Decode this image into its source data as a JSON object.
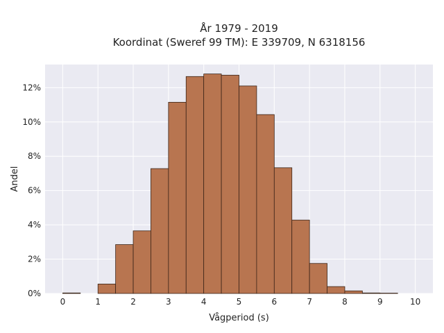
{
  "chart_data": {
    "type": "bar",
    "title_lines": [
      "År 1979 - 2019",
      "Koordinat (Sweref 99 TM): E 339709, N 6318156"
    ],
    "xlabel": "Vågperiod (s)",
    "ylabel": "Andel",
    "xlim": [
      -0.5,
      10.5
    ],
    "ylim": [
      0,
      0.1335
    ],
    "x_ticks": [
      0,
      1,
      2,
      3,
      4,
      5,
      6,
      7,
      8,
      9,
      10
    ],
    "y_ticks": [
      0,
      0.02,
      0.04,
      0.06,
      0.08,
      0.1,
      0.12
    ],
    "y_tick_labels": [
      "0%",
      "2%",
      "4%",
      "6%",
      "8%",
      "10%",
      "12%"
    ],
    "bin_width": 0.5,
    "bins": [
      {
        "start": 0.0,
        "value": 0.0003
      },
      {
        "start": 0.5,
        "value": 0.0
      },
      {
        "start": 1.0,
        "value": 0.0055
      },
      {
        "start": 1.5,
        "value": 0.0285
      },
      {
        "start": 2.0,
        "value": 0.0365
      },
      {
        "start": 2.5,
        "value": 0.0728
      },
      {
        "start": 3.0,
        "value": 0.1115
      },
      {
        "start": 3.5,
        "value": 0.1265
      },
      {
        "start": 4.0,
        "value": 0.128
      },
      {
        "start": 4.5,
        "value": 0.1273
      },
      {
        "start": 5.0,
        "value": 0.121
      },
      {
        "start": 5.5,
        "value": 0.1043
      },
      {
        "start": 6.0,
        "value": 0.0733
      },
      {
        "start": 6.5,
        "value": 0.0428
      },
      {
        "start": 7.0,
        "value": 0.0175
      },
      {
        "start": 7.5,
        "value": 0.004
      },
      {
        "start": 8.0,
        "value": 0.0015
      },
      {
        "start": 8.5,
        "value": 0.0003
      },
      {
        "start": 9.0,
        "value": 0.0002
      }
    ],
    "bar_color": "#b87550",
    "bar_edge_color": "#3a2418",
    "plot_background": "#eaeaf2",
    "grid_color": "#ffffff",
    "grid": true
  }
}
